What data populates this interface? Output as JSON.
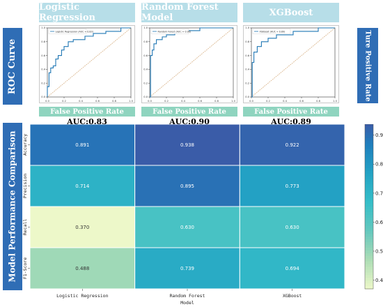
{
  "roc_section": {
    "side_label": "ROC Curve",
    "right_label": "Ture Positive Rate",
    "fpr_label": "False Positive Rate"
  },
  "heatmap_section": {
    "side_label": "Model Performance Comparison"
  },
  "colors": {
    "title_box": "#b7dee8",
    "side_box": "#2f6db5",
    "fpr_box": "#8fd4bf",
    "roc_line": "#1f77b4",
    "diagonal": "#d9b48a"
  },
  "chart_data": [
    {
      "type": "line",
      "title": "Logistic Regression",
      "legend": "Logistic Regression (AUC = 0.83)",
      "auc_label": "AUC:0.83",
      "x_ticks": [
        "0.0",
        "0.2",
        "0.4",
        "0.6",
        "0.8",
        "1.0"
      ],
      "y_ticks": [
        "0.0",
        "0.2",
        "0.4",
        "0.6",
        "0.8",
        "1.0"
      ],
      "xlim": [
        0,
        1
      ],
      "ylim": [
        0,
        1
      ],
      "x": [
        0,
        0,
        0.02,
        0.02,
        0.04,
        0.04,
        0.07,
        0.07,
        0.1,
        0.1,
        0.13,
        0.13,
        0.17,
        0.17,
        0.2,
        0.2,
        0.25,
        0.25,
        0.31,
        0.31,
        0.45,
        0.45,
        0.55,
        0.55,
        0.7,
        0.7,
        0.88,
        0.88,
        1
      ],
      "y": [
        0,
        0.15,
        0.15,
        0.35,
        0.35,
        0.42,
        0.42,
        0.45,
        0.45,
        0.55,
        0.55,
        0.6,
        0.6,
        0.68,
        0.68,
        0.73,
        0.73,
        0.8,
        0.8,
        0.83,
        0.83,
        0.88,
        0.88,
        0.92,
        0.92,
        0.95,
        0.95,
        1,
        1
      ]
    },
    {
      "type": "line",
      "title": "Random Forest Model",
      "legend": "Random Forest (AUC = 0.90)",
      "auc_label": "AUC:0.90",
      "x_ticks": [
        "0.0",
        "0.2",
        "0.4",
        "0.6",
        "0.8",
        "1.0"
      ],
      "y_ticks": [
        "0.0",
        "0.2",
        "0.4",
        "0.6",
        "0.8",
        "1.0"
      ],
      "xlim": [
        0,
        1
      ],
      "ylim": [
        0,
        1
      ],
      "x": [
        0,
        0.01,
        0.01,
        0.03,
        0.03,
        0.05,
        0.05,
        0.08,
        0.08,
        0.15,
        0.15,
        0.2,
        0.2,
        0.3,
        0.3,
        0.42,
        0.42,
        0.6,
        0.6,
        1
      ],
      "y": [
        0,
        0,
        0.6,
        0.6,
        0.68,
        0.68,
        0.77,
        0.77,
        0.83,
        0.83,
        0.87,
        0.87,
        0.9,
        0.9,
        0.93,
        0.93,
        0.96,
        0.96,
        1,
        1
      ]
    },
    {
      "type": "line",
      "title": "XGBoost",
      "legend": "XGBoost (AUC = 0.89)",
      "auc_label": "AUC:0.89",
      "x_ticks": [
        "0.0",
        "0.2",
        "0.4",
        "0.6",
        "0.8",
        "1.0"
      ],
      "y_ticks": [
        "0.0",
        "0.2",
        "0.4",
        "0.6",
        "0.8",
        "1.0"
      ],
      "xlim": [
        0,
        1
      ],
      "ylim": [
        0,
        1
      ],
      "x": [
        0,
        0.01,
        0.01,
        0.03,
        0.03,
        0.07,
        0.07,
        0.12,
        0.12,
        0.2,
        0.2,
        0.3,
        0.3,
        0.5,
        0.5,
        0.8,
        0.8,
        1
      ],
      "y": [
        0,
        0,
        0.5,
        0.5,
        0.65,
        0.65,
        0.73,
        0.73,
        0.8,
        0.8,
        0.85,
        0.85,
        0.9,
        0.9,
        0.95,
        0.95,
        1,
        1
      ]
    },
    {
      "type": "heatmap",
      "xlabel": "Model",
      "x_categories": [
        "Logistic Regression",
        "Random Forest",
        "XGBoost"
      ],
      "y_categories": [
        "Accuracy",
        "Precision",
        "Recall",
        "F1-Score"
      ],
      "values": [
        [
          0.891,
          0.938,
          0.922
        ],
        [
          0.714,
          0.895,
          0.773
        ],
        [
          0.37,
          0.63,
          0.63
        ],
        [
          0.488,
          0.739,
          0.694
        ]
      ],
      "value_labels": [
        [
          "0.891",
          "0.938",
          "0.922"
        ],
        [
          "0.714",
          "0.895",
          "0.773"
        ],
        [
          "0.370",
          "0.630",
          "0.630"
        ],
        [
          "0.488",
          "0.739",
          "0.694"
        ]
      ],
      "colorbar_ticks": [
        "0.4",
        "0.5",
        "0.6",
        "0.7",
        "0.8",
        "0.9"
      ],
      "colorbar_values": [
        0.4,
        0.5,
        0.6,
        0.7,
        0.8,
        0.9
      ],
      "colorbar_range": [
        0.37,
        0.938
      ]
    }
  ]
}
